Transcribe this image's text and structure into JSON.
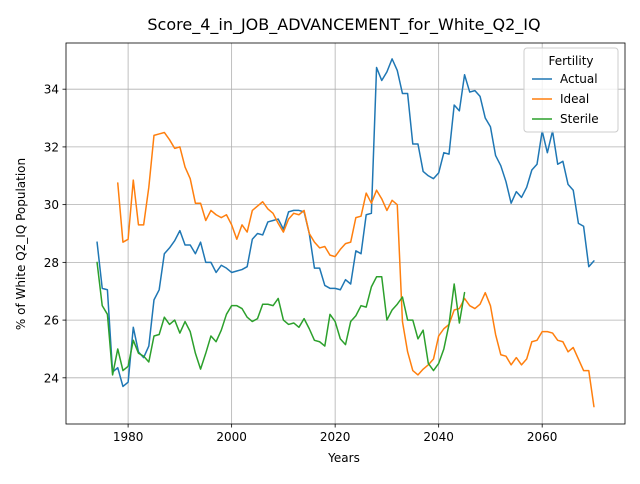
{
  "chart_data": {
    "type": "line",
    "title": "Score_4_in_JOB_ADVANCEMENT_for_White_Q2_IQ",
    "xlabel": "Years",
    "ylabel": "% of White Q2_IQ Population",
    "xlim": [
      1968,
      2076
    ],
    "ylim": [
      22.4,
      35.6
    ],
    "xticks": [
      1980,
      2000,
      2020,
      2040,
      2060
    ],
    "yticks": [
      24,
      26,
      28,
      30,
      32,
      34
    ],
    "grid": true,
    "legend": {
      "title": "Fertility",
      "position": "top-right"
    },
    "series": [
      {
        "name": "Actual",
        "color": "#1f77b4",
        "x": [
          1974,
          1975,
          1976,
          1977,
          1978,
          1979,
          1980,
          1981,
          1982,
          1983,
          1984,
          1985,
          1986,
          1987,
          1988,
          1989,
          1990,
          1991,
          1992,
          1993,
          1994,
          1995,
          1996,
          1997,
          1998,
          1999,
          2000,
          2001,
          2002,
          2003,
          2004,
          2005,
          2006,
          2007,
          2008,
          2009,
          2010,
          2011,
          2012,
          2013,
          2014,
          2015,
          2016,
          2017,
          2018,
          2019,
          2020,
          2021,
          2022,
          2023,
          2024,
          2025,
          2026,
          2027,
          2028,
          2029,
          2030,
          2031,
          2032,
          2033,
          2034,
          2035,
          2036,
          2037,
          2038,
          2039,
          2040,
          2041,
          2042,
          2043,
          2044,
          2045,
          2046,
          2047,
          2048,
          2049,
          2050,
          2051,
          2052,
          2053,
          2054,
          2055,
          2056,
          2057,
          2058,
          2059,
          2060,
          2061,
          2062,
          2063,
          2064,
          2065,
          2066,
          2067,
          2068,
          2069,
          2070
        ],
        "values": [
          28.7,
          27.1,
          27.05,
          24.2,
          24.35,
          23.7,
          23.85,
          25.75,
          24.9,
          24.7,
          25.1,
          26.7,
          27.05,
          28.3,
          28.5,
          28.75,
          29.1,
          28.6,
          28.6,
          28.3,
          28.7,
          28.0,
          28.0,
          27.65,
          27.9,
          27.8,
          27.65,
          27.7,
          27.75,
          27.85,
          28.8,
          29.0,
          28.95,
          29.4,
          29.45,
          29.5,
          29.15,
          29.75,
          29.8,
          29.8,
          29.75,
          29.0,
          27.8,
          27.8,
          27.2,
          27.1,
          27.1,
          27.05,
          27.4,
          27.25,
          28.4,
          28.3,
          29.65,
          29.7,
          34.75,
          34.3,
          34.6,
          35.05,
          34.65,
          33.85,
          33.85,
          32.1,
          32.1,
          31.15,
          31.0,
          30.9,
          31.1,
          31.8,
          31.75,
          33.45,
          33.25,
          34.5,
          33.9,
          33.95,
          33.75,
          33.0,
          32.7,
          31.7,
          31.35,
          30.8,
          30.05,
          30.45,
          30.25,
          30.6,
          31.2,
          31.4,
          32.55,
          31.8,
          32.55,
          31.4,
          31.5,
          30.7,
          30.5,
          29.35,
          29.25,
          27.85,
          28.05
        ]
      },
      {
        "name": "Ideal",
        "color": "#ff7f0e",
        "x": [
          1978,
          1979,
          1980,
          1981,
          1982,
          1983,
          1984,
          1985,
          1986,
          1987,
          1988,
          1989,
          1990,
          1991,
          1992,
          1993,
          1994,
          1995,
          1996,
          1997,
          1998,
          1999,
          2000,
          2001,
          2002,
          2003,
          2004,
          2005,
          2006,
          2007,
          2008,
          2009,
          2010,
          2011,
          2012,
          2013,
          2014,
          2015,
          2016,
          2017,
          2018,
          2019,
          2020,
          2021,
          2022,
          2023,
          2024,
          2025,
          2026,
          2027,
          2028,
          2029,
          2030,
          2031,
          2032,
          2033,
          2034,
          2035,
          2036,
          2037,
          2038,
          2039,
          2040,
          2041,
          2042,
          2043,
          2044,
          2045,
          2046,
          2047,
          2048,
          2049,
          2050,
          2051,
          2052,
          2053,
          2054,
          2055,
          2056,
          2057,
          2058,
          2059,
          2060,
          2061,
          2062,
          2063,
          2064,
          2065,
          2066,
          2067,
          2068,
          2069,
          2070
        ],
        "values": [
          30.75,
          28.7,
          28.8,
          30.85,
          29.3,
          29.3,
          30.6,
          32.4,
          32.45,
          32.5,
          32.25,
          31.95,
          32.0,
          31.3,
          30.9,
          30.05,
          30.05,
          29.45,
          29.8,
          29.65,
          29.55,
          29.65,
          29.3,
          28.8,
          29.3,
          29.05,
          29.8,
          29.95,
          30.1,
          29.85,
          29.7,
          29.35,
          29.05,
          29.5,
          29.7,
          29.65,
          29.8,
          29.0,
          28.7,
          28.5,
          28.55,
          28.25,
          28.2,
          28.45,
          28.65,
          28.7,
          29.55,
          29.6,
          30.4,
          30.05,
          30.5,
          30.2,
          29.8,
          30.15,
          30.0,
          25.95,
          24.9,
          24.25,
          24.1,
          24.3,
          24.45,
          24.65,
          25.45,
          25.7,
          25.85,
          26.35,
          26.4,
          26.75,
          26.5,
          26.4,
          26.55,
          26.95,
          26.5,
          25.5,
          24.8,
          24.75,
          24.45,
          24.7,
          24.45,
          24.65,
          25.25,
          25.3,
          25.6,
          25.6,
          25.55,
          25.3,
          25.25,
          24.9,
          25.05,
          24.65,
          24.25,
          24.25,
          23.0
        ]
      },
      {
        "name": "Sterile",
        "color": "#2ca02c",
        "x": [
          1974,
          1975,
          1976,
          1977,
          1978,
          1979,
          1980,
          1981,
          1982,
          1983,
          1984,
          1985,
          1986,
          1987,
          1988,
          1989,
          1990,
          1991,
          1992,
          1993,
          1994,
          1995,
          1996,
          1997,
          1998,
          1999,
          2000,
          2001,
          2002,
          2003,
          2004,
          2005,
          2006,
          2007,
          2008,
          2009,
          2010,
          2011,
          2012,
          2013,
          2014,
          2015,
          2016,
          2017,
          2018,
          2019,
          2020,
          2021,
          2022,
          2023,
          2024,
          2025,
          2026,
          2027,
          2028,
          2029,
          2030,
          2031,
          2032,
          2033,
          2034,
          2035,
          2036,
          2037,
          2038,
          2039,
          2040,
          2041,
          2042,
          2043,
          2044,
          2045
        ],
        "values": [
          28.0,
          26.5,
          26.2,
          24.1,
          25.0,
          24.25,
          24.4,
          25.3,
          24.85,
          24.75,
          24.55,
          25.45,
          25.5,
          26.1,
          25.85,
          26.0,
          25.55,
          25.95,
          25.6,
          24.85,
          24.3,
          24.85,
          25.45,
          25.25,
          25.65,
          26.2,
          26.5,
          26.5,
          26.4,
          26.1,
          25.95,
          26.05,
          26.55,
          26.55,
          26.5,
          26.75,
          26.0,
          25.85,
          25.9,
          25.75,
          26.05,
          25.7,
          25.3,
          25.25,
          25.1,
          26.2,
          25.95,
          25.35,
          25.15,
          25.95,
          26.15,
          26.5,
          26.45,
          27.15,
          27.5,
          27.5,
          26.0,
          26.35,
          26.55,
          26.8,
          26.0,
          26.0,
          25.35,
          25.65,
          24.5,
          24.25,
          24.5,
          25.0,
          25.85,
          27.25,
          25.9,
          26.95
        ]
      }
    ]
  }
}
